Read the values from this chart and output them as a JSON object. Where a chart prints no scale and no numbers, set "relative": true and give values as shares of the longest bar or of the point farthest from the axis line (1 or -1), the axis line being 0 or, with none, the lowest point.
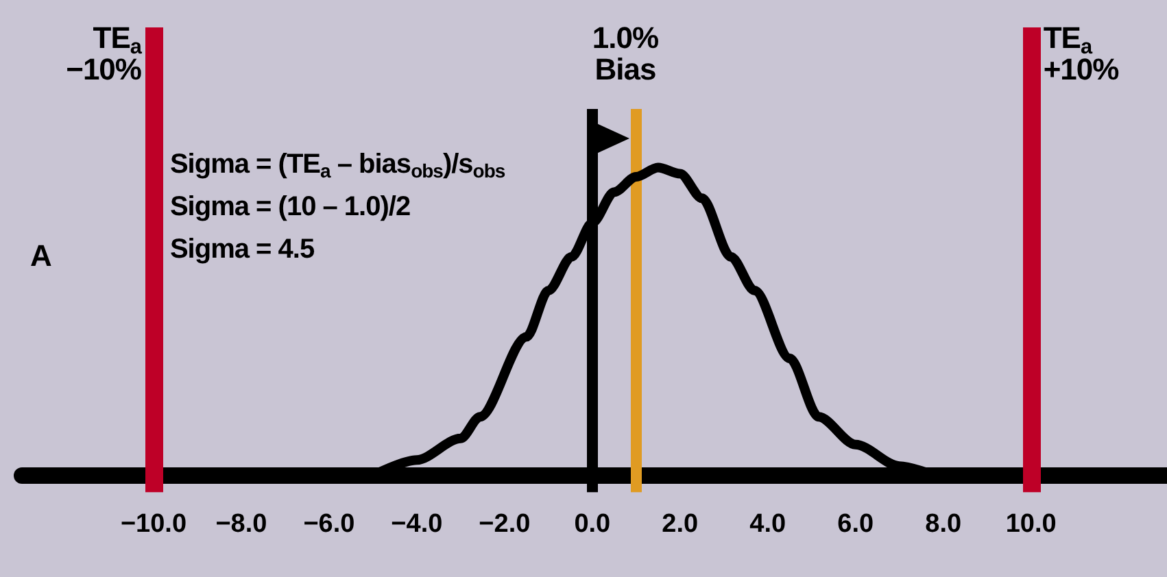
{
  "chart_data": {
    "type": "line",
    "relative": true,
    "x": [
      -5.0,
      -4.0,
      -3.0,
      -2.56,
      -1.5,
      -1.0,
      -0.47,
      0.0,
      0.5,
      1.0,
      1.5,
      2.0,
      2.5,
      3.16,
      3.7,
      4.5,
      5.16,
      6.0,
      7.0,
      7.8
    ],
    "series": [
      {
        "color": "#000000",
        "values": [
          0,
          0.05,
          0.12,
          0.19,
          0.45,
          0.6,
          0.71,
          0.82,
          0.92,
          0.97,
          1.0,
          0.98,
          0.9,
          0.71,
          0.6,
          0.38,
          0.19,
          0.1,
          0.03,
          0
        ]
      }
    ],
    "xlim": [
      -13,
      13.1
    ],
    "xticks": [
      {
        "value": -10,
        "label": "−10.0"
      },
      {
        "value": -8,
        "label": "−8.0"
      },
      {
        "value": -6,
        "label": "−6.0"
      },
      {
        "value": -4,
        "label": "−4.0"
      },
      {
        "value": -2,
        "label": "−2.0"
      },
      {
        "value": 0,
        "label": "0.0"
      },
      {
        "value": 2,
        "label": "2.0"
      },
      {
        "value": 4,
        "label": "4.0"
      },
      {
        "value": 6,
        "label": "6.0"
      },
      {
        "value": 8,
        "label": "8.0"
      },
      {
        "value": 10,
        "label": "10.0"
      }
    ],
    "ref_lines": [
      {
        "axis": "x",
        "value": -10,
        "label": "TE$_{a}$\n−10%",
        "color": "#be0027"
      },
      {
        "axis": "x",
        "value": 0,
        "color": "#000000"
      },
      {
        "axis": "x",
        "value": 1,
        "label": "1.0%\nBias",
        "color": "#e09b22"
      },
      {
        "axis": "x",
        "value": 10,
        "label": "TE$_{a}$\n+10%",
        "color": "#be0027"
      }
    ],
    "annotations": [
      "A",
      "Sigma = (TE$_{a}$ – bias$_{obs}$)/s$_{obs}$",
      "Sigma = (10 – 1.0)/2",
      "Sigma = 4.5"
    ],
    "line_style": "solid",
    "grid": false
  }
}
